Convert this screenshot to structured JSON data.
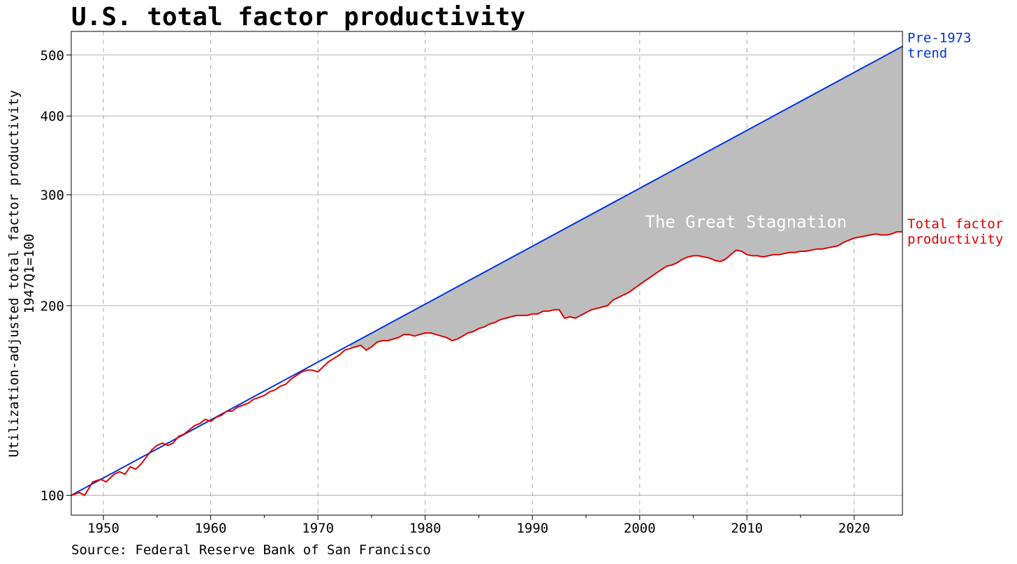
{
  "chart_data": {
    "type": "line",
    "title": "U.S. total factor productivity",
    "ylabel": [
      "Utilization-adjusted total factor productivity",
      "1947Q1=100"
    ],
    "xlabel": "",
    "source": "Source: Federal Reserve Bank of San Francisco",
    "y_scale": "log",
    "xlim": [
      1947.0,
      2024.5
    ],
    "ylim": [
      93,
      545
    ],
    "x_ticks": [
      1950,
      1960,
      1970,
      1980,
      1990,
      2000,
      2010,
      2020
    ],
    "x_tick_labels": [
      "1950",
      "1960",
      "1970",
      "1980",
      "1990",
      "2000",
      "2010",
      "2020"
    ],
    "y_ticks": [
      100,
      200,
      300,
      400,
      500
    ],
    "y_tick_labels": [
      "100",
      "200",
      "300",
      "400",
      "500"
    ],
    "grid": {
      "x": "dashed",
      "y": "solid"
    },
    "annotation": "The Great Stagnation",
    "series": [
      {
        "name": "Total factor productivity",
        "label_lines": [
          "Total factor",
          "productivity"
        ],
        "color": "#e00000",
        "x": [
          1947.0,
          1947.75,
          1948.25,
          1949.0,
          1949.75,
          1950.25,
          1951.0,
          1951.5,
          1952.0,
          1952.5,
          1953.0,
          1953.5,
          1954.0,
          1954.5,
          1955.0,
          1955.5,
          1956.0,
          1956.5,
          1957.0,
          1957.5,
          1958.0,
          1958.5,
          1959.0,
          1959.5,
          1960.0,
          1960.5,
          1961.0,
          1961.5,
          1962.0,
          1962.5,
          1963.0,
          1963.5,
          1964.0,
          1964.5,
          1965.0,
          1965.5,
          1966.0,
          1966.5,
          1967.0,
          1967.5,
          1968.0,
          1968.5,
          1969.0,
          1969.5,
          1970.0,
          1970.5,
          1971.0,
          1971.5,
          1972.0,
          1972.5,
          1973.0,
          1973.5,
          1974.0,
          1974.5,
          1975.0,
          1975.5,
          1976.0,
          1976.5,
          1977.0,
          1977.5,
          1978.0,
          1978.5,
          1979.0,
          1979.5,
          1980.0,
          1980.5,
          1981.0,
          1981.5,
          1982.0,
          1982.5,
          1983.0,
          1983.5,
          1984.0,
          1984.5,
          1985.0,
          1985.5,
          1986.0,
          1986.5,
          1987.0,
          1987.5,
          1988.0,
          1988.5,
          1989.0,
          1989.5,
          1990.0,
          1990.5,
          1991.0,
          1991.5,
          1992.0,
          1992.5,
          1993.0,
          1993.5,
          1994.0,
          1994.5,
          1995.0,
          1995.5,
          1996.0,
          1996.5,
          1997.0,
          1997.5,
          1998.0,
          1998.5,
          1999.0,
          1999.5,
          2000.0,
          2000.5,
          2001.0,
          2001.5,
          2002.0,
          2002.5,
          2003.0,
          2003.5,
          2004.0,
          2004.5,
          2005.0,
          2005.5,
          2006.0,
          2006.5,
          2007.0,
          2007.5,
          2008.0,
          2008.5,
          2009.0,
          2009.5,
          2010.0,
          2010.5,
          2011.0,
          2011.5,
          2012.0,
          2012.5,
          2013.0,
          2013.5,
          2014.0,
          2014.5,
          2015.0,
          2015.5,
          2016.0,
          2016.5,
          2017.0,
          2017.5,
          2018.0,
          2018.5,
          2019.0,
          2019.5,
          2020.0,
          2020.5,
          2021.0,
          2021.5,
          2022.0,
          2022.5,
          2023.0,
          2023.5,
          2024.0,
          2024.5
        ],
        "values": [
          100,
          101,
          100,
          105,
          106,
          105,
          108,
          109,
          108,
          111,
          110,
          112,
          115,
          118,
          120,
          121,
          120,
          121,
          124,
          125,
          127,
          129,
          130,
          132,
          131,
          133,
          134,
          136,
          136,
          138,
          139,
          140,
          142,
          143,
          144,
          146,
          147,
          149,
          150,
          153,
          155,
          157,
          158,
          158,
          157,
          160,
          163,
          165,
          167,
          170,
          171,
          172,
          173,
          170,
          172,
          175,
          176,
          176,
          177,
          178,
          180,
          180,
          179,
          180,
          181,
          181,
          180,
          179,
          178,
          176,
          177,
          179,
          181,
          182,
          184,
          185,
          187,
          188,
          190,
          191,
          192,
          193,
          193,
          193,
          194,
          194,
          196,
          196,
          197,
          197,
          191,
          192,
          191,
          193,
          195,
          197,
          198,
          199,
          200,
          204,
          206,
          208,
          210,
          213,
          216,
          219,
          222,
          225,
          228,
          231,
          232,
          234,
          237,
          239,
          240,
          240,
          239,
          238,
          236,
          235,
          237,
          241,
          245,
          244,
          241,
          240,
          240,
          239,
          240,
          241,
          241,
          242,
          243,
          243,
          244,
          244,
          245,
          246,
          246,
          247,
          248,
          249,
          252,
          254,
          256,
          257,
          258,
          259,
          260,
          259,
          259,
          260,
          262,
          262
        ]
      },
      {
        "name": "Pre-1973 trend",
        "label_lines": [
          "Pre-1973",
          "trend"
        ],
        "color": "#0033dd",
        "x": [
          1947.0,
          2024.5
        ],
        "values": [
          100,
          516
        ]
      }
    ],
    "fill_between": {
      "from_x": 1973.0,
      "color": "#bdbdbd"
    }
  }
}
